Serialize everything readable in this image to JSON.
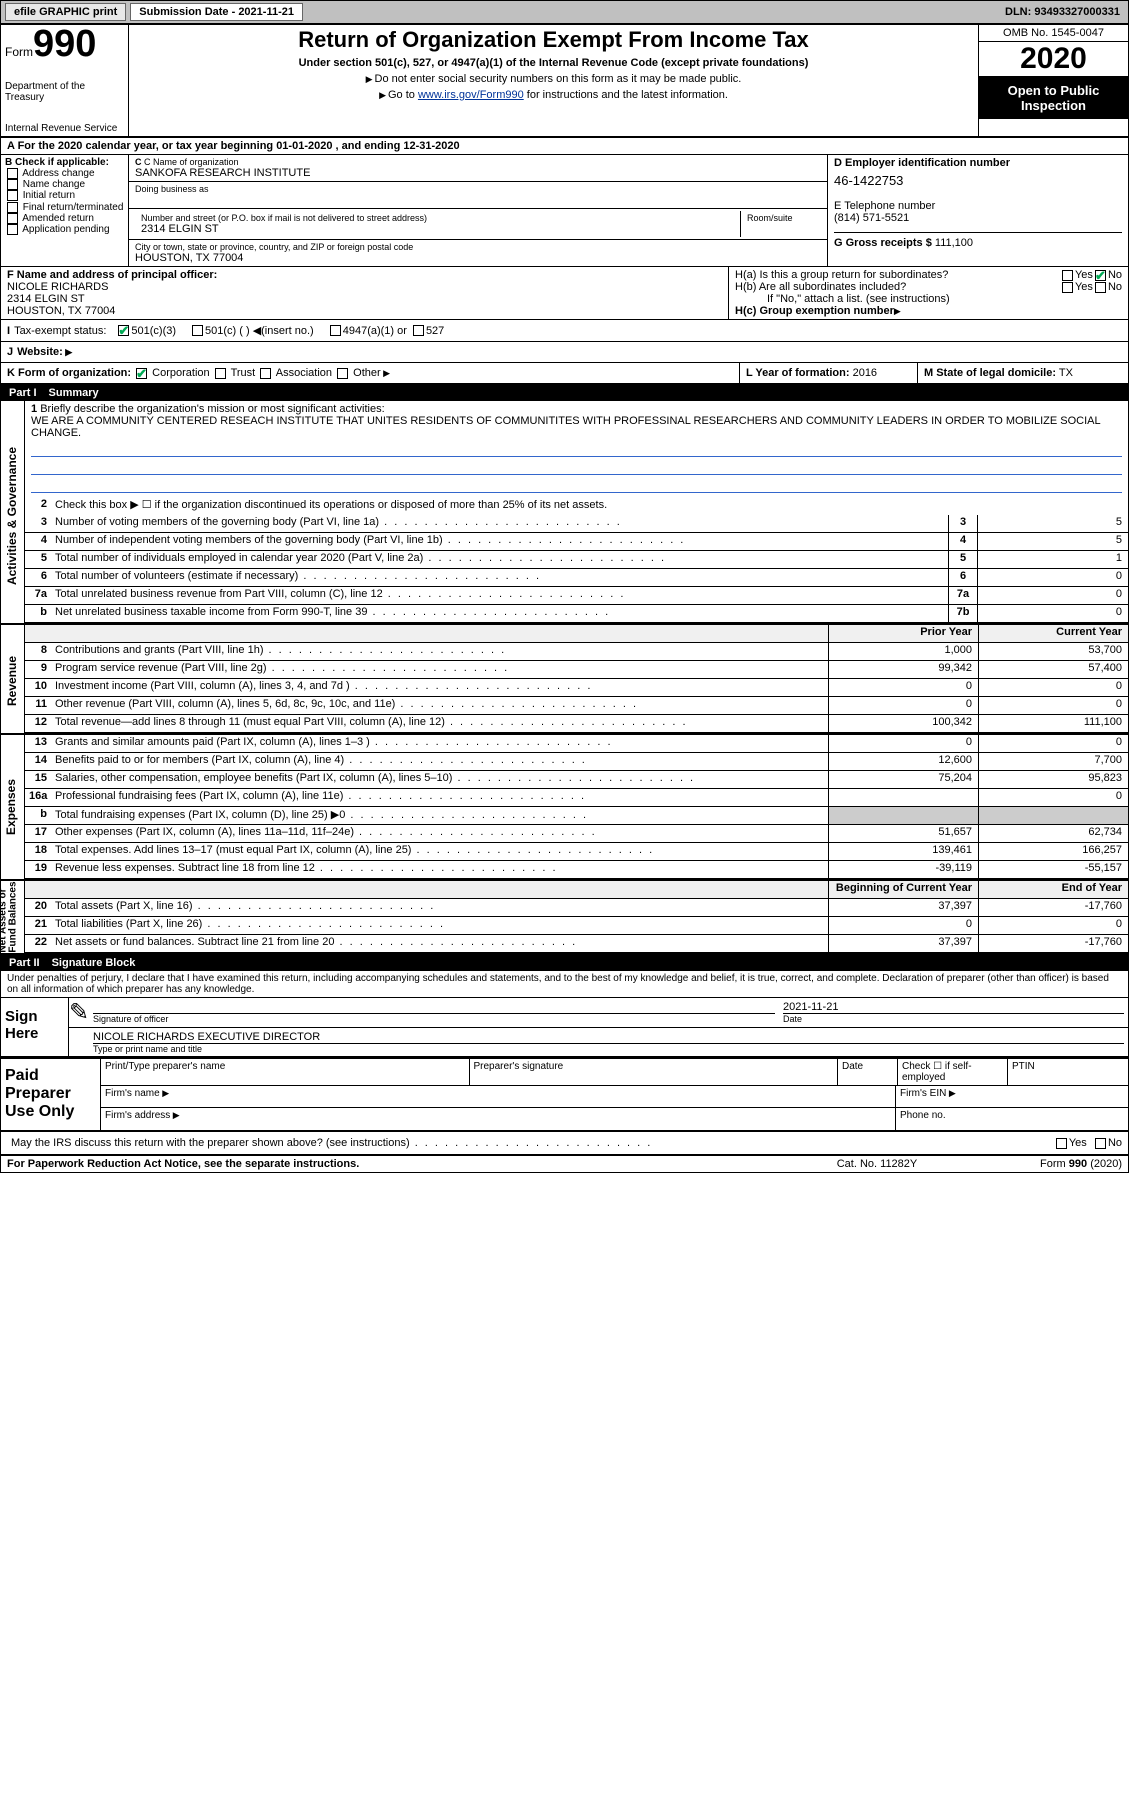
{
  "topbar": {
    "efile": "efile GRAPHIC print",
    "subdate_label": "Submission Date - 2021-11-21",
    "dln": "DLN: 93493327000331"
  },
  "header": {
    "form_label": "Form",
    "form_no": "990",
    "dept1": "Department of the Treasury",
    "dept2": "Internal Revenue Service",
    "title": "Return of Organization Exempt From Income Tax",
    "subtitle": "Under section 501(c), 527, or 4947(a)(1) of the Internal Revenue Code (except private foundations)",
    "sub2a": "Do not enter social security numbers on this form as it may be made public.",
    "sub2b_pre": "Go to ",
    "sub2b_link": "www.irs.gov/Form990",
    "sub2b_post": " for instructions and the latest information.",
    "omb": "OMB No. 1545-0047",
    "year": "2020",
    "open1": "Open to Public",
    "open2": "Inspection"
  },
  "rowA": "A For the 2020 calendar year, or tax year beginning 01-01-2020   , and ending 12-31-2020",
  "colB": {
    "label": "B Check if applicable:",
    "opts": [
      "Address change",
      "Name change",
      "Initial return",
      "Final return/terminated",
      "Amended return",
      "Application pending"
    ]
  },
  "colC": {
    "name_label": "C Name of organization",
    "name": "SANKOFA RESEARCH INSTITUTE",
    "dba_label": "Doing business as",
    "addr_label": "Number and street (or P.O. box if mail is not delivered to street address)",
    "room_label": "Room/suite",
    "addr": "2314 ELGIN ST",
    "city_label": "City or town, state or province, country, and ZIP or foreign postal code",
    "city": "HOUSTON, TX  77004"
  },
  "colD": {
    "ein_label": "D Employer identification number",
    "ein": "46-1422753",
    "tel_label": "E Telephone number",
    "tel": "(814) 571-5521",
    "gross_label": "G Gross receipts $",
    "gross": "111,100"
  },
  "colF": {
    "label": "F  Name and address of principal officer:",
    "name": "NICOLE RICHARDS",
    "addr1": "2314 ELGIN ST",
    "addr2": "HOUSTON, TX  77004"
  },
  "colH": {
    "ha": "H(a)  Is this a group return for subordinates?",
    "hb": "H(b)  Are all subordinates included?",
    "hb_note": "If \"No,\" attach a list. (see instructions)",
    "hc": "H(c)  Group exemption number",
    "yes": "Yes",
    "no": "No"
  },
  "rowI": {
    "label": "I",
    "txt": "Tax-exempt status:",
    "opts": [
      "501(c)(3)",
      "501(c) (  )  ◀(insert no.)",
      "4947(a)(1) or",
      "527"
    ]
  },
  "rowJ": {
    "label": "J",
    "txt": "Website:"
  },
  "rowK": {
    "k1_label": "K Form of organization:",
    "k1_opts": [
      "Corporation",
      "Trust",
      "Association",
      "Other"
    ],
    "k2_label": "L Year of formation:",
    "k2_val": "2016",
    "k3_label": "M State of legal domicile:",
    "k3_val": "TX"
  },
  "part1": {
    "bar": "Part I",
    "title": "Summary"
  },
  "summary": {
    "l1_label": "1",
    "l1_txt": "Briefly describe the organization's mission or most significant activities:",
    "mission": "WE ARE A COMMUNITY CENTERED RESEACH INSTITUTE THAT UNITES RESIDENTS OF COMMUNITITES WITH PROFESSINAL RESEARCHERS AND COMMUNITY LEADERS IN ORDER TO MOBILIZE SOCIAL CHANGE.",
    "l2": "Check this box ▶ ☐  if the organization discontinued its operations or disposed of more than 25% of its net assets.",
    "rows_single": [
      {
        "n": "3",
        "txt": "Number of voting members of the governing body (Part VI, line 1a)",
        "box": "3",
        "val": "5"
      },
      {
        "n": "4",
        "txt": "Number of independent voting members of the governing body (Part VI, line 1b)",
        "box": "4",
        "val": "5"
      },
      {
        "n": "5",
        "txt": "Total number of individuals employed in calendar year 2020 (Part V, line 2a)",
        "box": "5",
        "val": "1"
      },
      {
        "n": "6",
        "txt": "Total number of volunteers (estimate if necessary)",
        "box": "6",
        "val": "0"
      },
      {
        "n": "7a",
        "txt": "Total unrelated business revenue from Part VIII, column (C), line 12",
        "box": "7a",
        "val": "0"
      },
      {
        "n": "b",
        "txt": "Net unrelated business taxable income from Form 990-T, line 39",
        "box": "7b",
        "val": "0"
      }
    ],
    "col_hdr_prior": "Prior Year",
    "col_hdr_curr": "Current Year",
    "revenue": [
      {
        "n": "8",
        "txt": "Contributions and grants (Part VIII, line 1h)",
        "p": "1,000",
        "c": "53,700"
      },
      {
        "n": "9",
        "txt": "Program service revenue (Part VIII, line 2g)",
        "p": "99,342",
        "c": "57,400"
      },
      {
        "n": "10",
        "txt": "Investment income (Part VIII, column (A), lines 3, 4, and 7d )",
        "p": "0",
        "c": "0"
      },
      {
        "n": "11",
        "txt": "Other revenue (Part VIII, column (A), lines 5, 6d, 8c, 9c, 10c, and 11e)",
        "p": "0",
        "c": "0"
      },
      {
        "n": "12",
        "txt": "Total revenue—add lines 8 through 11 (must equal Part VIII, column (A), line 12)",
        "p": "100,342",
        "c": "111,100"
      }
    ],
    "expenses": [
      {
        "n": "13",
        "txt": "Grants and similar amounts paid (Part IX, column (A), lines 1–3 )",
        "p": "0",
        "c": "0"
      },
      {
        "n": "14",
        "txt": "Benefits paid to or for members (Part IX, column (A), line 4)",
        "p": "12,600",
        "c": "7,700"
      },
      {
        "n": "15",
        "txt": "Salaries, other compensation, employee benefits (Part IX, column (A), lines 5–10)",
        "p": "75,204",
        "c": "95,823"
      },
      {
        "n": "16a",
        "txt": "Professional fundraising fees (Part IX, column (A), line 11e)",
        "p": "",
        "c": "0"
      },
      {
        "n": "b",
        "txt": "Total fundraising expenses (Part IX, column (D), line 25) ▶0",
        "p": "",
        "c": "",
        "grey": true
      },
      {
        "n": "17",
        "txt": "Other expenses (Part IX, column (A), lines 11a–11d, 11f–24e)",
        "p": "51,657",
        "c": "62,734"
      },
      {
        "n": "18",
        "txt": "Total expenses. Add lines 13–17 (must equal Part IX, column (A), line 25)",
        "p": "139,461",
        "c": "166,257"
      },
      {
        "n": "19",
        "txt": "Revenue less expenses. Subtract line 18 from line 12",
        "p": "-39,119",
        "c": "-55,157"
      }
    ],
    "col_hdr_beg": "Beginning of Current Year",
    "col_hdr_end": "End of Year",
    "netassets": [
      {
        "n": "20",
        "txt": "Total assets (Part X, line 16)",
        "p": "37,397",
        "c": "-17,760"
      },
      {
        "n": "21",
        "txt": "Total liabilities (Part X, line 26)",
        "p": "0",
        "c": "0"
      },
      {
        "n": "22",
        "txt": "Net assets or fund balances. Subtract line 21 from line 20",
        "p": "37,397",
        "c": "-17,760"
      }
    ],
    "vlabels": {
      "gov": "Activities & Governance",
      "rev": "Revenue",
      "exp": "Expenses",
      "net": "Net Assets or\nFund Balances"
    }
  },
  "part2": {
    "bar": "Part II",
    "title": "Signature Block"
  },
  "sig": {
    "decl": "Under penalties of perjury, I declare that I have examined this return, including accompanying schedules and statements, and to the best of my knowledge and belief, it is true, correct, and complete. Declaration of preparer (other than officer) is based on all information of which preparer has any knowledge.",
    "sign_here": "Sign Here",
    "sig_officer": "Signature of officer",
    "date_label": "Date",
    "date_val": "2021-11-21",
    "name_title": "NICOLE RICHARDS  EXECUTIVE DIRECTOR",
    "name_title_label": "Type or print name and title",
    "paid": "Paid Preparer Use Only",
    "p_name": "Print/Type preparer's name",
    "p_sig": "Preparer's signature",
    "p_date": "Date",
    "p_check": "Check ☐ if self-employed",
    "p_ptin": "PTIN",
    "p_firm": "Firm's name",
    "p_ein": "Firm's EIN",
    "p_addr": "Firm's address",
    "p_phone": "Phone no.",
    "discuss": "May the IRS discuss this return with the preparer shown above? (see instructions)"
  },
  "footer": {
    "f1": "For Paperwork Reduction Act Notice, see the separate instructions.",
    "f2": "Cat. No. 11282Y",
    "f3": "Form 990 (2020)"
  },
  "colors": {
    "link": "#003399",
    "missionline": "#3366cc"
  }
}
